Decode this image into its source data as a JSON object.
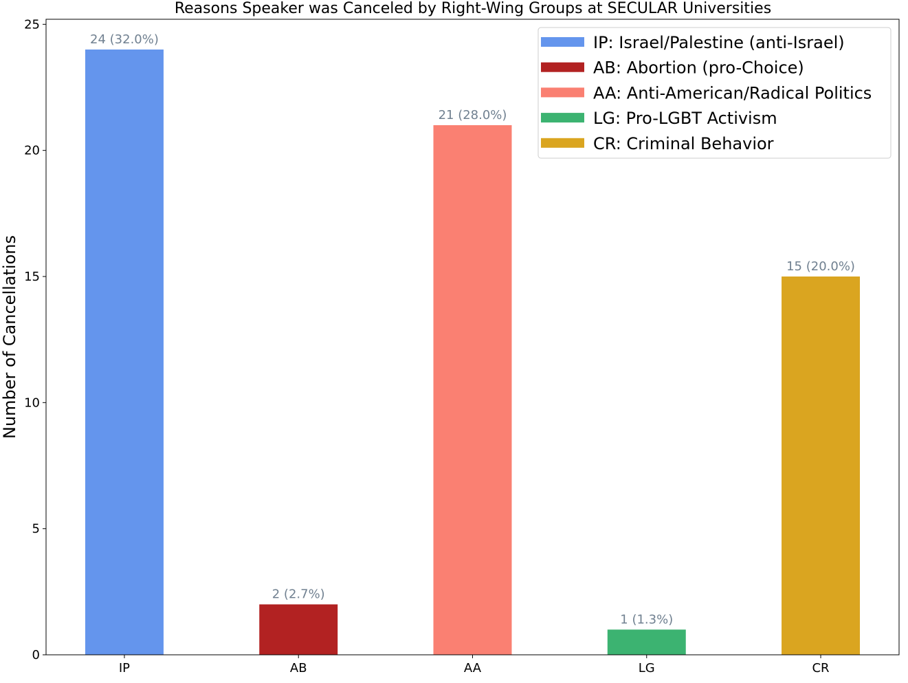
{
  "chart_data": {
    "type": "bar",
    "title": "Reasons Speaker was Canceled by Right-Wing Groups at SECULAR Universities",
    "xlabel": "",
    "ylabel": "Number of Cancellations",
    "categories": [
      "IP",
      "AB",
      "AA",
      "LG",
      "CR"
    ],
    "values": [
      24,
      2,
      21,
      1,
      15
    ],
    "data_labels": [
      "24 (32.0%)",
      "2 (2.7%)",
      "21 (28.0%)",
      "1 (1.3%)",
      "15 (20.0%)"
    ],
    "colors": [
      "#6495ED",
      "#B22222",
      "#FA8072",
      "#3CB371",
      "#DAA520"
    ],
    "ylim": [
      0,
      25.2
    ],
    "yticks": [
      0,
      5,
      10,
      15,
      20,
      25
    ],
    "grid": false,
    "legend_position": "top-right",
    "legend": [
      {
        "label": "IP: Israel/Palestine (anti-Israel)",
        "color": "#6495ED"
      },
      {
        "label": "AB: Abortion (pro-Choice)",
        "color": "#B22222"
      },
      {
        "label": "AA: Anti-American/Radical Politics",
        "color": "#FA8072"
      },
      {
        "label": "LG: Pro-LGBT Activism",
        "color": "#3CB371"
      },
      {
        "label": "CR: Criminal Behavior",
        "color": "#DAA520"
      }
    ]
  }
}
